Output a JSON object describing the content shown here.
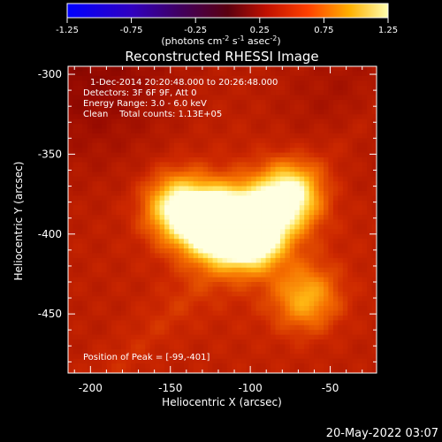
{
  "colorbar": {
    "ticks": [
      "-1.25",
      "-0.75",
      "-0.25",
      "0.25",
      "0.75",
      "1.25"
    ],
    "unit_label": "(photons cm",
    "unit_exp1": "-2",
    "unit_mid": " s",
    "unit_exp2": "-1",
    "unit_end": " asec",
    "unit_exp3": "-2",
    "unit_close": ")",
    "range": [
      -1.25,
      1.25
    ]
  },
  "annotations": {
    "time_range": "1-Dec-2014 20:20:48.000 to 20:26:48.000",
    "detectors": "Detectors: 3F 6F 9F, Att 0",
    "energy": "Energy Range: 3.0 - 6.0 keV",
    "clean": "Clean    Total counts: 1.13E+05",
    "peak": "Position of Peak = [-99,-401]"
  },
  "footer": {
    "timestamp": "20-May-2022 03:07"
  },
  "chart_data": {
    "type": "heatmap",
    "title": "Reconstructed RHESSI Image",
    "xlabel": "Heliocentric X (arcsec)",
    "ylabel": "Heliocentric Y (arcsec)",
    "xlim": [
      -214,
      -21
    ],
    "ylim": [
      -487,
      -295
    ],
    "xticks": [
      -200,
      -150,
      -100,
      -50
    ],
    "yticks": [
      -300,
      -350,
      -400,
      -450
    ],
    "xtick_labels": [
      "-200",
      "-150",
      "-100",
      "-50"
    ],
    "ytick_labels": [
      "-300",
      "-350",
      "-400",
      "-450"
    ],
    "colormap": "hot",
    "peak_position": [
      -99,
      -401
    ],
    "sources": [
      {
        "x": -99,
        "y": -401,
        "intensity": 1.0
      },
      {
        "x": -125,
        "y": -395,
        "intensity": 0.9
      },
      {
        "x": -145,
        "y": -383,
        "intensity": 0.75
      },
      {
        "x": -77,
        "y": -377,
        "intensity": 0.85
      },
      {
        "x": -110,
        "y": -390,
        "intensity": 0.6
      },
      {
        "x": -65,
        "y": -440,
        "intensity": 0.45
      }
    ]
  }
}
